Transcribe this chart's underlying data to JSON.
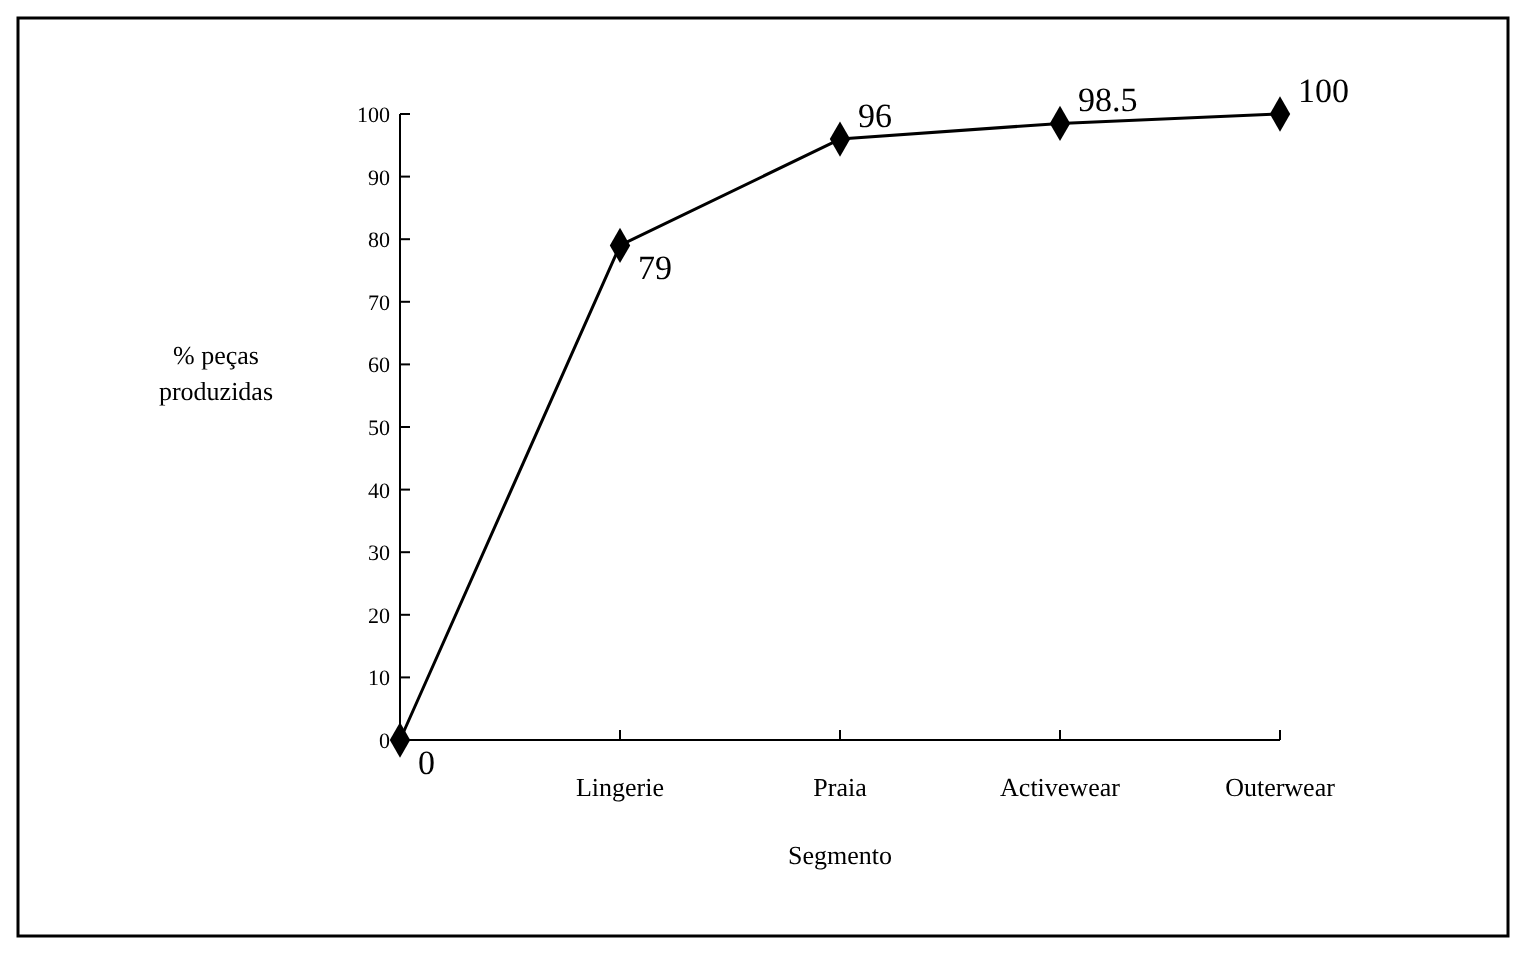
{
  "chart_data": {
    "type": "line",
    "xlabel": "Segmento",
    "ylabel": "% peças produzidas",
    "categories": [
      null,
      "Lingerie",
      "Praia",
      "Activewear",
      "Outerwear"
    ],
    "series": [
      {
        "color": "#000000",
        "values": [
          0,
          79,
          96,
          98.5,
          100
        ]
      }
    ],
    "ylim": [
      0,
      100
    ],
    "yticks": [
      0,
      10,
      20,
      30,
      40,
      50,
      60,
      70,
      80,
      90,
      100
    ],
    "grid": false,
    "marker": "diamond",
    "line_style": "solid",
    "data_labels": true
  }
}
